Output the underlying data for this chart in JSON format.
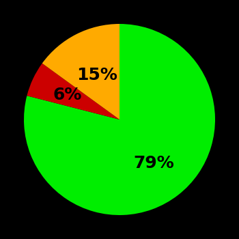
{
  "slices": [
    79,
    6,
    15
  ],
  "colors": [
    "#00ee00",
    "#cc0000",
    "#ffaa00"
  ],
  "labels": [
    "79%",
    "6%",
    "15%"
  ],
  "label_radii": [
    0.58,
    0.6,
    0.52
  ],
  "background_color": "#000000",
  "startangle": 90,
  "figsize": [
    3.5,
    3.5
  ],
  "dpi": 100,
  "label_fontsize": 18,
  "label_fontweight": "bold"
}
